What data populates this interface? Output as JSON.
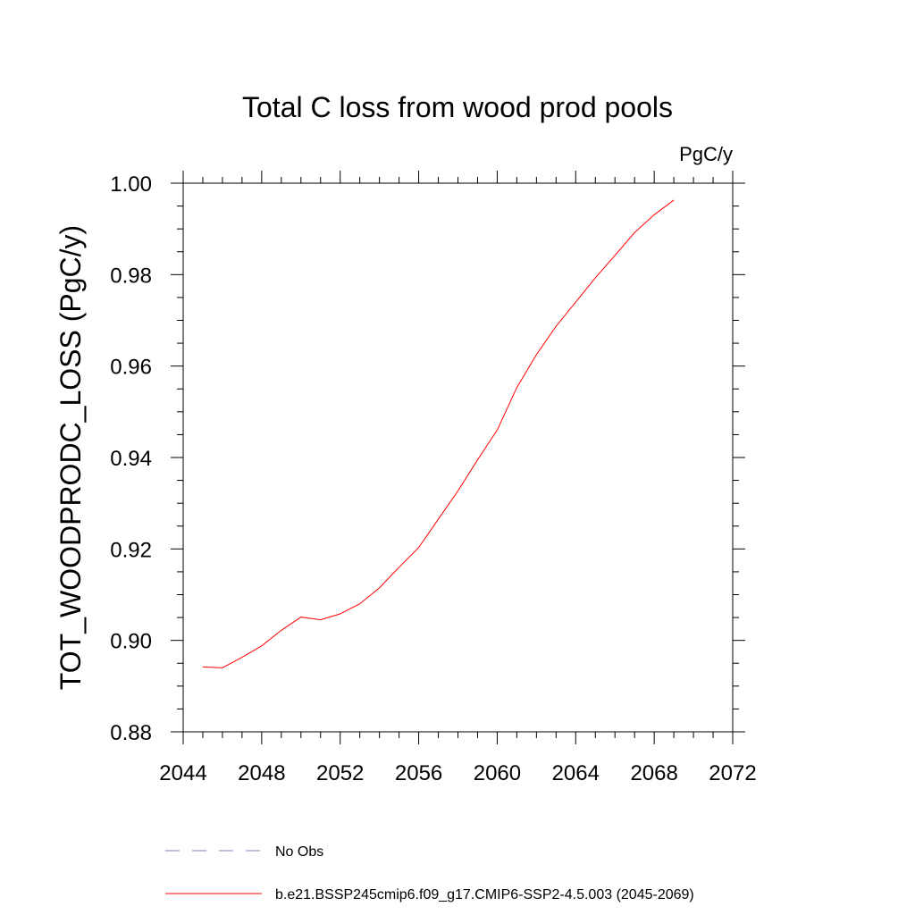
{
  "chart_data": {
    "type": "line",
    "title": "Total C loss from wood prod pools",
    "units_label": "PgC/y",
    "ylabel": "TOT_WOODPRODC_LOSS  (PgC/y)",
    "xlabel": "",
    "xlim": [
      2044,
      2072
    ],
    "ylim": [
      0.88,
      1.0
    ],
    "x_major_ticks": [
      2044,
      2048,
      2052,
      2056,
      2060,
      2064,
      2068,
      2072
    ],
    "x_tick_labels": [
      "2044",
      "2048",
      "2052",
      "2056",
      "2060",
      "2064",
      "2068",
      "2072"
    ],
    "y_major_ticks": [
      0.88,
      0.9,
      0.92,
      0.94,
      0.96,
      0.98,
      1.0
    ],
    "y_tick_labels": [
      "0.88",
      "0.90",
      "0.92",
      "0.94",
      "0.96",
      "0.98",
      "1.00"
    ],
    "grid": false,
    "legend_placement": "bottom",
    "series": [
      {
        "name": "No Obs",
        "color": "#8080c0",
        "dash": "dashed",
        "x": [],
        "y": []
      },
      {
        "name": "b.e21.BSSP245cmip6.f09_g17.CMIP6-SSP2-4.5.003 (2045-2069)",
        "color": "#ff0000",
        "dash": "solid",
        "x": [
          2045,
          2046,
          2047,
          2048,
          2049,
          2050,
          2051,
          2052,
          2053,
          2054,
          2055,
          2056,
          2057,
          2058,
          2059,
          2060,
          2061,
          2062,
          2063,
          2064,
          2065,
          2066,
          2067,
          2068,
          2069
        ],
        "y": [
          0.8942,
          0.894,
          0.8963,
          0.8988,
          0.9022,
          0.9051,
          0.9045,
          0.9058,
          0.908,
          0.9115,
          0.916,
          0.9203,
          0.9265,
          0.9327,
          0.9395,
          0.946,
          0.9553,
          0.9625,
          0.9687,
          0.974,
          0.9793,
          0.9842,
          0.9892,
          0.9931,
          0.9963
        ]
      }
    ]
  }
}
